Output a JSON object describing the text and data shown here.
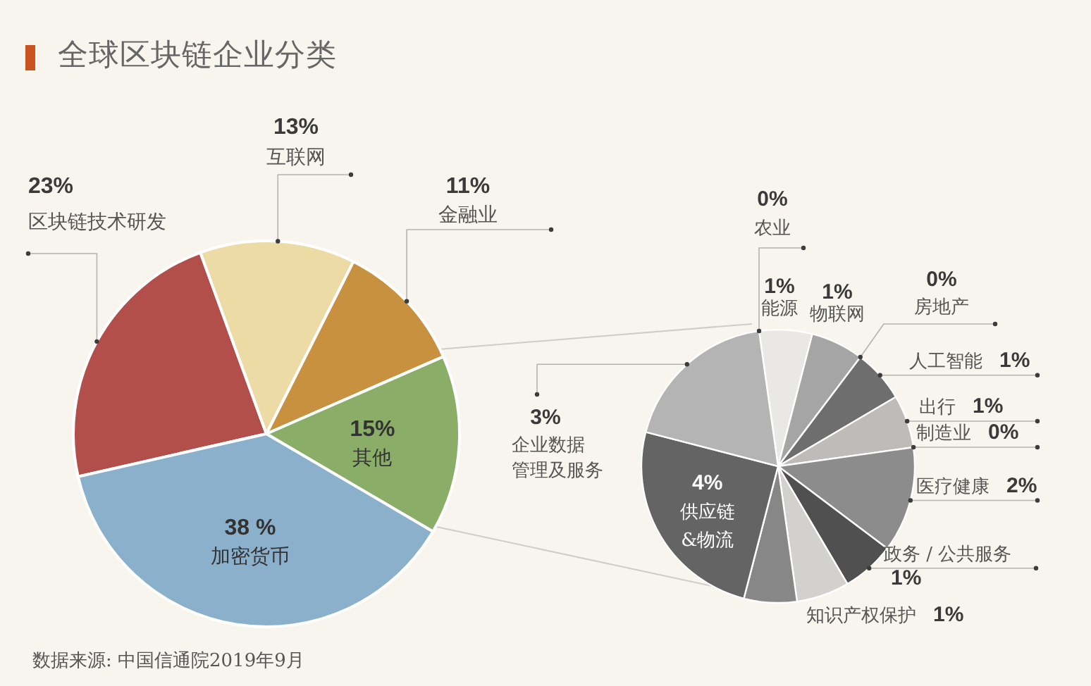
{
  "chart_data": [
    {
      "type": "pie",
      "title": "全球区块链企业分类",
      "categories": [
        "区块链技术研发",
        "互联网",
        "金融业",
        "其他",
        "加密货币"
      ],
      "values": [
        23,
        13,
        11,
        15,
        38
      ],
      "value_labels": [
        "23%",
        "13%",
        "11%",
        "15%",
        "38 %"
      ],
      "colors": [
        "#b34f4b",
        "#ecdba5",
        "#c8913f",
        "#8aae68",
        "#8ab0cc"
      ],
      "annotations": [
        "数据来源: 中国信通院2019年9月"
      ]
    },
    {
      "type": "pie",
      "categories": [
        "农业",
        "能源",
        "物联网",
        "房地产",
        "人工智能",
        "出行",
        "制造业",
        "医疗健康",
        "政务 / 公共服务",
        "知识产权保护",
        null,
        "供应链&物流",
        "企业数据管理及服务"
      ],
      "values": [
        0,
        1,
        1,
        0,
        1,
        1,
        0,
        2,
        1,
        1,
        1,
        4,
        3
      ],
      "value_labels": [
        "0%",
        "1%",
        "1%",
        "0%",
        "1%",
        "1%",
        "0%",
        "2%",
        "1%",
        "1%",
        null,
        "4%",
        "3%"
      ],
      "colors": [
        null,
        "#e9e8e4",
        "#a5a5a5",
        null,
        "#6e6e6e",
        "#bdbcb9",
        null,
        "#8c8c8c",
        "#505050",
        "#d2d1cd",
        "#878787",
        "#646464",
        "#b4b4b4"
      ]
    }
  ]
}
